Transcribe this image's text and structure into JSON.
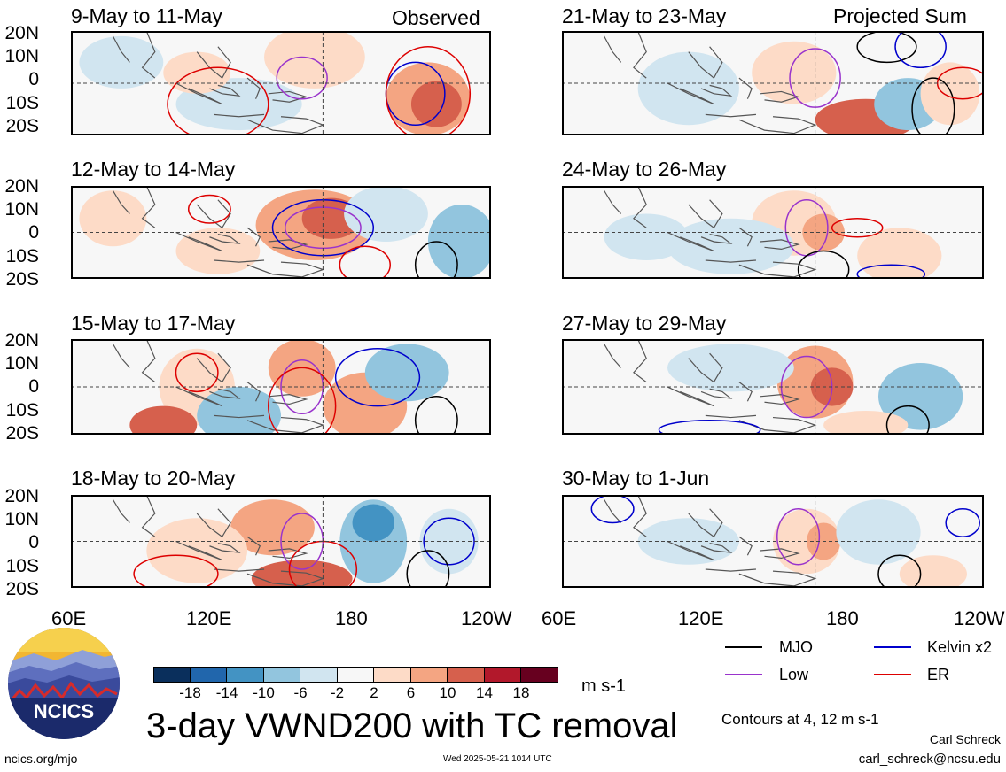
{
  "figure": {
    "main_title": "3-day VWND200 with TC removal",
    "units": "m s-1",
    "contour_note": "Contours at 4, 12 m s-1",
    "author": "Carl Schreck",
    "email": "carl_schreck@ncsu.edu",
    "site": "ncics.org/mjo",
    "timestamp": "Wed 2025-05-21 1014 UTC",
    "logo_text": "NCICS"
  },
  "panels": [
    {
      "title": "9-May to 11-May",
      "tag": "Observed"
    },
    {
      "title": "12-May to 14-May",
      "tag": ""
    },
    {
      "title": "15-May to 17-May",
      "tag": ""
    },
    {
      "title": "18-May to 20-May",
      "tag": ""
    },
    {
      "title": "21-May to 23-May",
      "tag": "Projected Sum"
    },
    {
      "title": "24-May to 26-May",
      "tag": ""
    },
    {
      "title": "27-May to 29-May",
      "tag": ""
    },
    {
      "title": "30-May to 1-Jun",
      "tag": ""
    }
  ],
  "axes": {
    "lat_labels": [
      "20N",
      "10N",
      "0",
      "10S",
      "20S"
    ],
    "lon_labels": [
      "60E",
      "120E",
      "180",
      "120W"
    ]
  },
  "colorbar": {
    "labels": [
      "-18",
      "-14",
      "-10",
      "-6",
      "-2",
      "2",
      "6",
      "10",
      "14",
      "18"
    ],
    "colors": [
      "#0a2f5c",
      "#2166ac",
      "#4393c3",
      "#92c5de",
      "#d1e5f0",
      "#f7f7f7",
      "#fddbc7",
      "#f4a582",
      "#d6604d",
      "#b2182b",
      "#67001f"
    ]
  },
  "legend": [
    {
      "label": "MJO",
      "color": "#000000"
    },
    {
      "label": "Kelvin x2",
      "color": "#0000cc"
    },
    {
      "label": "Low",
      "color": "#9933cc"
    },
    {
      "label": "ER",
      "color": "#dd0000"
    }
  ]
}
